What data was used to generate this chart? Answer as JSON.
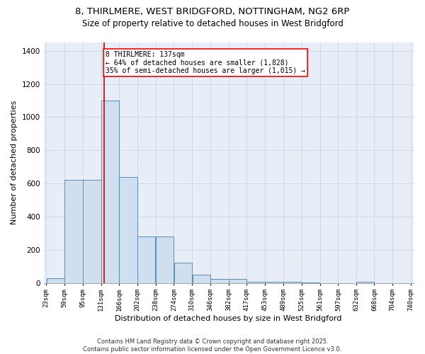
{
  "title1": "8, THIRLMERE, WEST BRIDGFORD, NOTTINGHAM, NG2 6RP",
  "title2": "Size of property relative to detached houses in West Bridgford",
  "xlabel": "Distribution of detached houses by size in West Bridgford",
  "ylabel": "Number of detached properties",
  "bin_edges": [
    23,
    59,
    95,
    131,
    166,
    202,
    238,
    274,
    310,
    346,
    382,
    417,
    453,
    489,
    525,
    561,
    597,
    632,
    668,
    704,
    740
  ],
  "bar_heights": [
    28,
    620,
    620,
    1100,
    640,
    280,
    280,
    120,
    50,
    25,
    25,
    5,
    5,
    5,
    2,
    0,
    0,
    5,
    0,
    0
  ],
  "bar_color": "#d0dff0",
  "bar_edgecolor": "#5b8db8",
  "red_line_x": 137,
  "annotation_text": "8 THIRLMERE: 137sqm\n← 64% of detached houses are smaller (1,828)\n35% of semi-detached houses are larger (1,015) →",
  "annotation_box_color": "white",
  "annotation_box_edgecolor": "red",
  "red_line_color": "#cc0000",
  "ylim": [
    0,
    1450
  ],
  "yticks": [
    0,
    200,
    400,
    600,
    800,
    1000,
    1200,
    1400
  ],
  "background_color": "#e8eef8",
  "grid_color": "#d0d8e8",
  "footnote": "Contains HM Land Registry data © Crown copyright and database right 2025.\nContains public sector information licensed under the Open Government Licence v3.0.",
  "title1_fontsize": 9.5,
  "title2_fontsize": 8.5,
  "xlabel_fontsize": 8,
  "ylabel_fontsize": 8,
  "annotation_fontsize": 7,
  "footnote_fontsize": 6
}
